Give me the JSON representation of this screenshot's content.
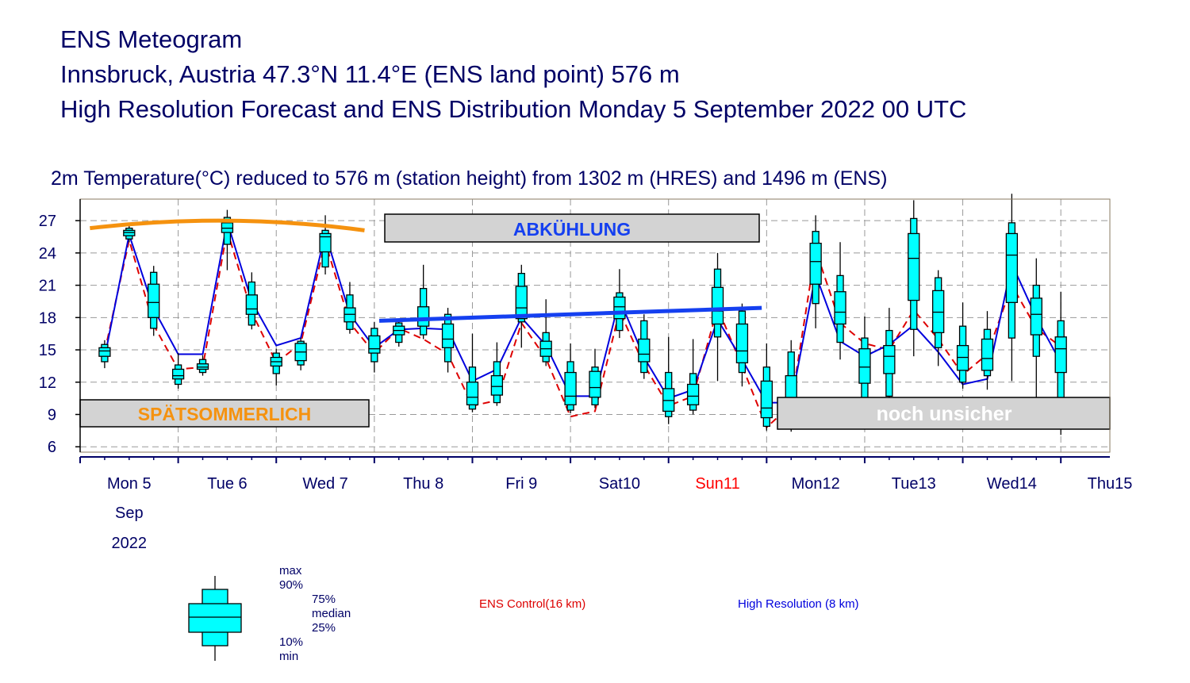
{
  "header": {
    "line1": "ENS Meteogram",
    "line2": "Innsbruck, Austria 47.3°N 11.4°E (ENS land point) 576 m",
    "line3": "High Resolution Forecast and ENS Distribution Monday  5 September 2022 00 UTC"
  },
  "subtitle": "2m Temperature(°C) reduced to 576 m (station height) from 1302 m (HRES) and 1496 m (ENS)",
  "colors": {
    "box_fill": "#00FFFF",
    "ens_control": "#DD0000",
    "hres": "#0000DD",
    "orange_trend": "#F5920F",
    "blue_trend": "#1540F0",
    "annotation_box": "#D3D3D3",
    "grid": "#999999",
    "axis_text": "#000066",
    "sunday": "#FF0000"
  },
  "chart_data": {
    "type": "box",
    "ylim": [
      5.5,
      29
    ],
    "yticks": [
      6,
      9,
      12,
      15,
      18,
      21,
      24,
      27
    ],
    "xlim": [
      0,
      10.5
    ],
    "day_labels": [
      "Mon 5",
      "Tue 6",
      "Wed 7",
      "Thu 8",
      "Fri 9",
      "Sat10",
      "Sun11",
      "Mon12",
      "Tue13",
      "Wed14",
      "Thu15"
    ],
    "date_labels": [
      "Sep",
      "2022"
    ],
    "boxes": [
      {
        "t": 0.25,
        "min": 13.3,
        "p10": 13.9,
        "p25": 14.4,
        "median": 14.9,
        "p75": 15.2,
        "p90": 15.5,
        "max": 15.9
      },
      {
        "t": 0.5,
        "min": 25.0,
        "p10": 25.3,
        "p25": 25.6,
        "median": 25.9,
        "p75": 26.1,
        "p90": 26.3,
        "max": 26.5
      },
      {
        "t": 0.75,
        "min": 16.3,
        "p10": 17.0,
        "p25": 18.0,
        "median": 19.4,
        "p75": 21.1,
        "p90": 22.2,
        "max": 22.8
      },
      {
        "t": 1.0,
        "min": 11.4,
        "p10": 11.8,
        "p25": 12.3,
        "median": 12.6,
        "p75": 13.2,
        "p90": 13.6,
        "max": 14.7
      },
      {
        "t": 1.25,
        "min": 12.6,
        "p10": 12.9,
        "p25": 13.2,
        "median": 13.4,
        "p75": 13.7,
        "p90": 14.1,
        "max": 14.5
      },
      {
        "t": 1.5,
        "min": 22.4,
        "p10": 24.8,
        "p25": 25.9,
        "median": 26.3,
        "p75": 26.8,
        "p90": 27.3,
        "max": 28.0
      },
      {
        "t": 1.75,
        "min": 16.9,
        "p10": 17.3,
        "p25": 18.3,
        "median": 18.8,
        "p75": 20.1,
        "p90": 21.3,
        "max": 22.2
      },
      {
        "t": 2.0,
        "min": 11.7,
        "p10": 12.8,
        "p25": 13.5,
        "median": 13.9,
        "p75": 14.3,
        "p90": 14.7,
        "max": 15.1
      },
      {
        "t": 2.25,
        "min": 13.1,
        "p10": 13.6,
        "p25": 14.0,
        "median": 14.8,
        "p75": 15.6,
        "p90": 15.8,
        "max": 16.1
      },
      {
        "t": 2.5,
        "min": 22.0,
        "p10": 22.7,
        "p25": 24.1,
        "median": 25.5,
        "p75": 25.8,
        "p90": 26.1,
        "max": 27.5
      },
      {
        "t": 2.75,
        "min": 16.5,
        "p10": 16.9,
        "p25": 17.6,
        "median": 18.3,
        "p75": 18.9,
        "p90": 20.1,
        "max": 21.3
      },
      {
        "t": 3.0,
        "min": 12.9,
        "p10": 13.9,
        "p25": 14.7,
        "median": 15.1,
        "p75": 16.3,
        "p90": 17.0,
        "max": 17.6
      },
      {
        "t": 3.25,
        "min": 15.3,
        "p10": 15.7,
        "p25": 16.4,
        "median": 16.8,
        "p75": 17.2,
        "p90": 17.5,
        "max": 17.8
      },
      {
        "t": 3.5,
        "min": 16.0,
        "p10": 16.4,
        "p25": 17.2,
        "median": 17.8,
        "p75": 19.0,
        "p90": 20.7,
        "max": 22.9
      },
      {
        "t": 3.75,
        "min": 12.9,
        "p10": 13.9,
        "p25": 15.2,
        "median": 16.0,
        "p75": 17.4,
        "p90": 18.3,
        "max": 18.9
      },
      {
        "t": 4.0,
        "min": 9.2,
        "p10": 9.5,
        "p25": 9.9,
        "median": 10.6,
        "p75": 12.0,
        "p90": 13.4,
        "max": 16.5
      },
      {
        "t": 4.25,
        "min": 9.8,
        "p10": 10.1,
        "p25": 10.8,
        "median": 11.6,
        "p75": 12.6,
        "p90": 13.9,
        "max": 15.7
      },
      {
        "t": 4.5,
        "min": 15.2,
        "p10": 17.6,
        "p25": 17.9,
        "median": 18.9,
        "p75": 20.9,
        "p90": 22.1,
        "max": 22.9
      },
      {
        "t": 4.75,
        "min": 13.5,
        "p10": 13.9,
        "p25": 14.4,
        "median": 15.1,
        "p75": 15.8,
        "p90": 16.6,
        "max": 19.7
      },
      {
        "t": 5.0,
        "min": 9.1,
        "p10": 9.4,
        "p25": 9.9,
        "median": 10.7,
        "p75": 12.9,
        "p90": 13.9,
        "max": 15.6
      },
      {
        "t": 5.25,
        "min": 9.6,
        "p10": 9.9,
        "p25": 10.6,
        "median": 11.5,
        "p75": 13.0,
        "p90": 13.4,
        "max": 15.1
      },
      {
        "t": 5.5,
        "min": 16.1,
        "p10": 16.8,
        "p25": 17.9,
        "median": 19.0,
        "p75": 19.9,
        "p90": 20.3,
        "max": 22.5
      },
      {
        "t": 5.75,
        "min": 12.3,
        "p10": 12.9,
        "p25": 13.9,
        "median": 14.6,
        "p75": 16.0,
        "p90": 17.7,
        "max": 18.3
      },
      {
        "t": 6.0,
        "min": 8.1,
        "p10": 8.8,
        "p25": 9.3,
        "median": 10.3,
        "p75": 11.4,
        "p90": 12.9,
        "max": 16.2
      },
      {
        "t": 6.25,
        "min": 9.0,
        "p10": 9.4,
        "p25": 9.9,
        "median": 10.7,
        "p75": 11.8,
        "p90": 12.8,
        "max": 16.0
      },
      {
        "t": 6.5,
        "min": 12.1,
        "p10": 16.2,
        "p25": 17.4,
        "median": 18.6,
        "p75": 20.8,
        "p90": 22.5,
        "max": 24.0
      },
      {
        "t": 6.75,
        "min": 11.6,
        "p10": 12.9,
        "p25": 13.8,
        "median": 14.9,
        "p75": 17.4,
        "p90": 18.6,
        "max": 19.3
      },
      {
        "t": 7.0,
        "min": 7.5,
        "p10": 7.9,
        "p25": 8.7,
        "median": 9.6,
        "p75": 12.1,
        "p90": 13.4,
        "max": 15.6
      },
      {
        "t": 7.25,
        "min": 7.4,
        "p10": 7.8,
        "p25": 8.5,
        "median": 10.0,
        "p75": 12.6,
        "p90": 14.8,
        "max": 15.9
      },
      {
        "t": 7.5,
        "min": 17.0,
        "p10": 19.3,
        "p25": 21.1,
        "median": 23.2,
        "p75": 24.9,
        "p90": 26.0,
        "max": 27.5
      },
      {
        "t": 7.75,
        "min": 14.1,
        "p10": 15.7,
        "p25": 17.4,
        "median": 18.5,
        "p75": 20.4,
        "p90": 21.9,
        "max": 25.0
      },
      {
        "t": 8.0,
        "min": 7.9,
        "p10": 10.4,
        "p25": 11.9,
        "median": 13.4,
        "p75": 15.1,
        "p90": 16.1,
        "max": 18.1
      },
      {
        "t": 8.25,
        "min": 8.4,
        "p10": 10.7,
        "p25": 12.8,
        "median": 14.4,
        "p75": 15.4,
        "p90": 16.8,
        "max": 18.9
      },
      {
        "t": 8.5,
        "min": 14.4,
        "p10": 16.9,
        "p25": 19.6,
        "median": 23.5,
        "p75": 25.8,
        "p90": 27.2,
        "max": 28.9
      },
      {
        "t": 8.75,
        "min": 13.5,
        "p10": 15.2,
        "p25": 16.6,
        "median": 18.5,
        "p75": 20.5,
        "p90": 21.7,
        "max": 22.4
      },
      {
        "t": 9.0,
        "min": 11.4,
        "p10": 12.0,
        "p25": 13.1,
        "median": 14.3,
        "p75": 15.4,
        "p90": 17.2,
        "max": 19.4
      },
      {
        "t": 9.25,
        "min": 11.3,
        "p10": 12.6,
        "p25": 13.1,
        "median": 14.2,
        "p75": 16.0,
        "p90": 16.9,
        "max": 18.6
      },
      {
        "t": 9.5,
        "min": 12.1,
        "p10": 16.1,
        "p25": 19.4,
        "median": 23.8,
        "p75": 25.8,
        "p90": 26.8,
        "max": 29.5
      },
      {
        "t": 9.75,
        "min": 10.6,
        "p10": 14.4,
        "p25": 16.4,
        "median": 18.3,
        "p75": 19.8,
        "p90": 21.0,
        "max": 23.5
      },
      {
        "t": 10.0,
        "min": 7.1,
        "p10": 10.1,
        "p25": 12.9,
        "median": 15.1,
        "p75": 16.2,
        "p90": 17.7,
        "max": 20.4
      }
    ],
    "ens_control": {
      "t": [
        0.25,
        0.5,
        0.75,
        1.0,
        1.25,
        1.5,
        1.75,
        2.0,
        2.25,
        2.5,
        2.75,
        3.0,
        3.25,
        3.5,
        3.75,
        4.0,
        4.25,
        4.5,
        4.75,
        5.0,
        5.25,
        5.5,
        5.75,
        6.0,
        6.25,
        6.5,
        6.75,
        7.0,
        7.25,
        7.5,
        7.75,
        8.0,
        8.25,
        8.5,
        8.75,
        9.0,
        9.25,
        9.5,
        9.75,
        10.0
      ],
      "values": [
        14.8,
        25.2,
        17.3,
        13.2,
        13.4,
        26.1,
        18.5,
        13.8,
        15.6,
        25.0,
        17.5,
        14.7,
        17.0,
        16.0,
        14.6,
        9.8,
        10.3,
        17.5,
        14.2,
        8.8,
        9.3,
        18.6,
        13.6,
        9.8,
        10.7,
        18.9,
        13.5,
        7.8,
        9.9,
        24.3,
        17.5,
        15.6,
        15.0,
        18.7,
        16.0,
        12.7,
        14.6,
        21.0,
        17.0,
        15.3
      ]
    },
    "hres": {
      "t": [
        0.25,
        0.5,
        0.75,
        1.0,
        1.25,
        1.5,
        1.75,
        2.0,
        2.25,
        2.5,
        2.75,
        3.0,
        3.25,
        3.5,
        3.75,
        4.0,
        4.25,
        4.5,
        4.75,
        5.0,
        5.25,
        5.5,
        5.75,
        6.0,
        6.25,
        6.5,
        6.75,
        7.0,
        7.25,
        7.5,
        7.75,
        8.0,
        8.25,
        8.5,
        8.75,
        9.0,
        9.25,
        9.5,
        9.75,
        10.0
      ],
      "values": [
        14.3,
        25.7,
        18.8,
        14.6,
        14.6,
        26.9,
        19.5,
        15.4,
        16.1,
        25.8,
        18.3,
        15.2,
        16.9,
        17.0,
        16.9,
        12.1,
        13.2,
        18.0,
        15.4,
        10.7,
        10.7,
        19.7,
        14.3,
        10.5,
        11.3,
        17.8,
        14.1,
        10.1,
        10.1,
        22.0,
        15.8,
        14.4,
        15.5,
        17.3,
        14.8,
        11.8,
        12.3,
        23.0,
        18.0,
        13.8
      ]
    },
    "trend_lines": {
      "orange": {
        "t": [
          0.1,
          1.5,
          2.9
        ],
        "values": [
          26.3,
          27.0,
          26.1
        ]
      },
      "blue": {
        "t": [
          3.05,
          6.95
        ],
        "values": [
          17.7,
          18.9
        ]
      }
    },
    "annotations": [
      {
        "text": "SPÄTSOMMERLICH",
        "color": "#F5920F"
      },
      {
        "text": "ABKÜHLUNG",
        "color": "#1540F0"
      },
      {
        "text": "noch unsicher",
        "color": "#FFFFFF"
      }
    ]
  },
  "legend": {
    "max": "max",
    "p90": "90%",
    "p75": "75%",
    "median": "median",
    "p25": "25%",
    "p10": "10%",
    "min": "min",
    "ens_control": "ENS Control(16 km)",
    "hres": "High Resolution (8 km)"
  }
}
